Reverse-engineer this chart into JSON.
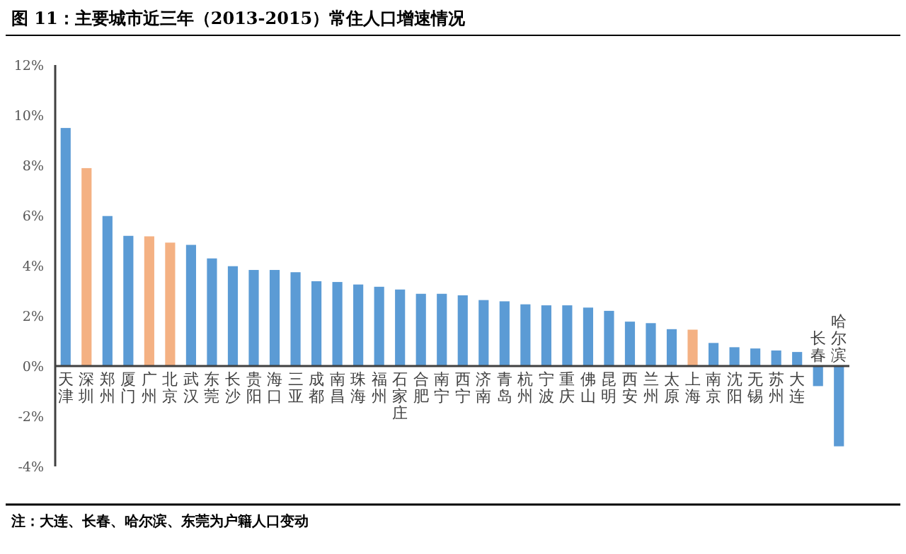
{
  "chart_data": {
    "type": "bar",
    "title": "图 11：主要城市近三年（2013-2015）常住人口增速情况",
    "categories": [
      "天津",
      "深圳",
      "郑州",
      "厦门",
      "广州",
      "北京",
      "武汉",
      "东莞",
      "长沙",
      "贵阳",
      "海口",
      "三亚",
      "成都",
      "南昌",
      "珠海",
      "福州",
      "石家庄",
      "合肥",
      "南宁",
      "西宁",
      "济南",
      "青岛",
      "杭州",
      "宁波",
      "重庆",
      "佛山",
      "昆明",
      "西安",
      "兰州",
      "太原",
      "上海",
      "南京",
      "沈阳",
      "无锡",
      "苏州",
      "大连",
      "长春",
      "哈尔滨"
    ],
    "values": [
      9.49,
      7.89,
      5.98,
      5.19,
      5.17,
      4.92,
      4.83,
      4.29,
      3.98,
      3.83,
      3.83,
      3.74,
      3.38,
      3.35,
      3.25,
      3.16,
      3.05,
      2.88,
      2.88,
      2.82,
      2.63,
      2.58,
      2.46,
      2.42,
      2.42,
      2.33,
      2.2,
      1.77,
      1.71,
      1.47,
      1.45,
      0.92,
      0.75,
      0.7,
      0.62,
      0.56,
      -0.8,
      -3.2
    ],
    "colors": [
      "#5b9bd5",
      "#f4b183",
      "#5b9bd5",
      "#5b9bd5",
      "#f4b183",
      "#f4b183",
      "#5b9bd5",
      "#5b9bd5",
      "#5b9bd5",
      "#5b9bd5",
      "#5b9bd5",
      "#5b9bd5",
      "#5b9bd5",
      "#5b9bd5",
      "#5b9bd5",
      "#5b9bd5",
      "#5b9bd5",
      "#5b9bd5",
      "#5b9bd5",
      "#5b9bd5",
      "#5b9bd5",
      "#5b9bd5",
      "#5b9bd5",
      "#5b9bd5",
      "#5b9bd5",
      "#5b9bd5",
      "#5b9bd5",
      "#5b9bd5",
      "#5b9bd5",
      "#5b9bd5",
      "#f4b183",
      "#5b9bd5",
      "#5b9bd5",
      "#5b9bd5",
      "#5b9bd5",
      "#5b9bd5",
      "#5b9bd5",
      "#5b9bd5"
    ],
    "ylim": [
      -4,
      12
    ],
    "yticks": [
      {
        "value": -4,
        "label": "-4%"
      },
      {
        "value": -2,
        "label": "-2%"
      },
      {
        "value": 0,
        "label": "0%"
      },
      {
        "value": 2,
        "label": "2%"
      },
      {
        "value": 4,
        "label": "4%"
      },
      {
        "value": 6,
        "label": "6%"
      },
      {
        "value": 8,
        "label": "8%"
      },
      {
        "value": 10,
        "label": "10%"
      },
      {
        "value": 12,
        "label": "12%"
      }
    ],
    "grid": false,
    "annotations": [
      "注：大连、长春、哈尔滨、东莞为户籍人口变动"
    ]
  }
}
